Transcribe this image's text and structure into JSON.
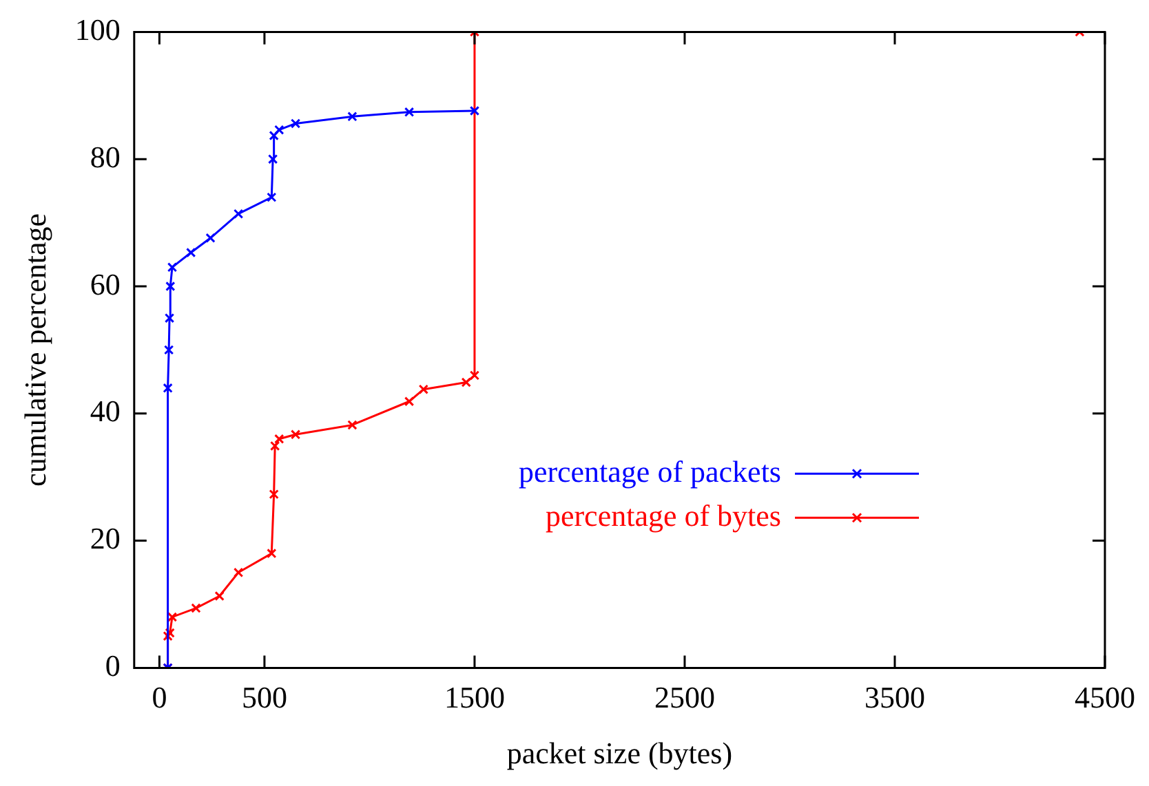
{
  "chart_data": {
    "type": "line",
    "xlabel": "packet size (bytes)",
    "ylabel": "cumulative percentage",
    "xlim": [
      -120,
      4500
    ],
    "xticks": [
      0,
      500,
      1500,
      2500,
      3500,
      4500
    ],
    "ylim": [
      0,
      100
    ],
    "yticks": [
      0,
      20,
      40,
      60,
      80,
      100
    ],
    "grid": false,
    "legend": "center right",
    "marker": "cross",
    "line_style": "solid",
    "series": [
      {
        "name": "percentage of packets",
        "color": "#0000ff",
        "x": [
          40,
          40,
          45,
          48,
          52,
          61,
          150,
          243,
          376,
          534,
          540,
          545,
          570,
          648,
          918,
          1189,
          1500
        ],
        "values": [
          0,
          44,
          50,
          55,
          60,
          63,
          65.3,
          67.6,
          71.4,
          74,
          80,
          83.7,
          84.6,
          85.6,
          86.7,
          87.4,
          87.6
        ]
      },
      {
        "name": "percentage of bytes",
        "color": "#ff0000",
        "x": [
          40,
          40,
          50,
          61,
          174,
          286,
          376,
          534,
          545,
          550,
          570,
          648,
          918,
          1189,
          1257,
          1460,
          1500,
          1500,
          4380
        ],
        "values": [
          0,
          5,
          5.5,
          8,
          9.4,
          11.3,
          15,
          18,
          27.3,
          34.9,
          36,
          36.7,
          38.2,
          41.9,
          43.8,
          44.9,
          46,
          100,
          100
        ]
      }
    ]
  }
}
